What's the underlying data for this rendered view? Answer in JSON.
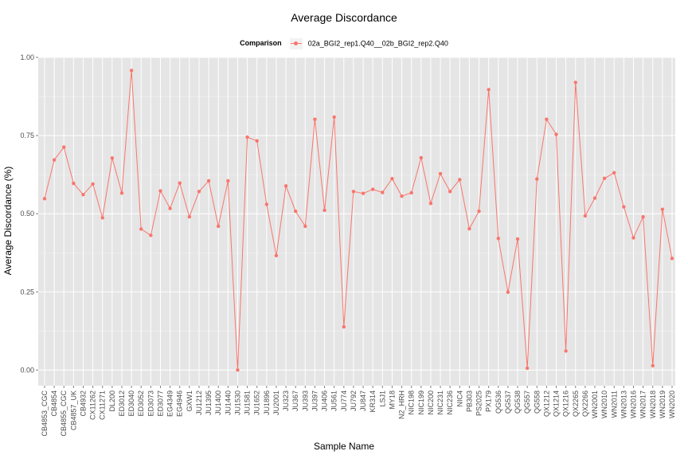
{
  "chart_data": {
    "type": "line",
    "title": "Average Discordance",
    "xlabel": "Sample Name",
    "ylabel": "Average Discordance (%)",
    "legend_title": "Comparison",
    "legend_position": "top",
    "grid": true,
    "ylim": [
      -0.05,
      1.0
    ],
    "yticks": [
      "0.00",
      "0.25",
      "0.50",
      "0.75",
      "1.00"
    ],
    "colors": {
      "series": "#F8766D",
      "panel": "#e5e5e5",
      "grid": "#ffffff"
    },
    "categories": [
      "CB4853_CGC",
      "CB4854",
      "CB4855_CGC",
      "CB4857_UK",
      "CB4932",
      "CX11262",
      "CX11271",
      "DL200",
      "ED3012",
      "ED3040",
      "ED3052",
      "ED3073",
      "ED3077",
      "EG4349",
      "EG4946",
      "GXW1",
      "JU1212",
      "JU1395",
      "JU1400",
      "JU1440",
      "JU1530",
      "JU1581",
      "JU1652",
      "JU1896",
      "JU2001",
      "JU323",
      "JU367",
      "JU393",
      "JU397",
      "JU406",
      "JU561",
      "JU774",
      "JU792",
      "JU847",
      "KR314",
      "LSJ1",
      "MY18",
      "N2_HRH",
      "NIC198",
      "NIC199",
      "NIC200",
      "NIC231",
      "NIC236",
      "NIC4",
      "PB303",
      "PS2025",
      "PX179",
      "QG536",
      "QG537",
      "QG538",
      "QG557",
      "QG558",
      "QX1212",
      "QX1214",
      "QX1216",
      "QX2265",
      "QX2266",
      "WN2001",
      "WN2010",
      "WN2011",
      "WN2013",
      "WN2016",
      "WN2017",
      "WN2018",
      "WN2019",
      "WN2020"
    ],
    "series": [
      {
        "name": "02a_BGI2_rep1.Q40__02b_BGI2_rep2.Q40",
        "values": [
          0.548,
          0.672,
          0.713,
          0.597,
          0.561,
          0.595,
          0.487,
          0.678,
          0.566,
          0.958,
          0.451,
          0.431,
          0.573,
          0.517,
          0.598,
          0.49,
          0.571,
          0.605,
          0.46,
          0.605,
          0.0,
          0.745,
          0.733,
          0.53,
          0.366,
          0.589,
          0.508,
          0.46,
          0.802,
          0.511,
          0.809,
          0.138,
          0.571,
          0.565,
          0.578,
          0.568,
          0.612,
          0.556,
          0.567,
          0.679,
          0.533,
          0.628,
          0.571,
          0.609,
          0.452,
          0.508,
          0.897,
          0.421,
          0.249,
          0.419,
          0.006,
          0.611,
          0.802,
          0.754,
          0.061,
          0.92,
          0.493,
          0.55,
          0.613,
          0.631,
          0.522,
          0.423,
          0.49,
          0.014,
          0.514,
          0.357
        ]
      }
    ]
  }
}
